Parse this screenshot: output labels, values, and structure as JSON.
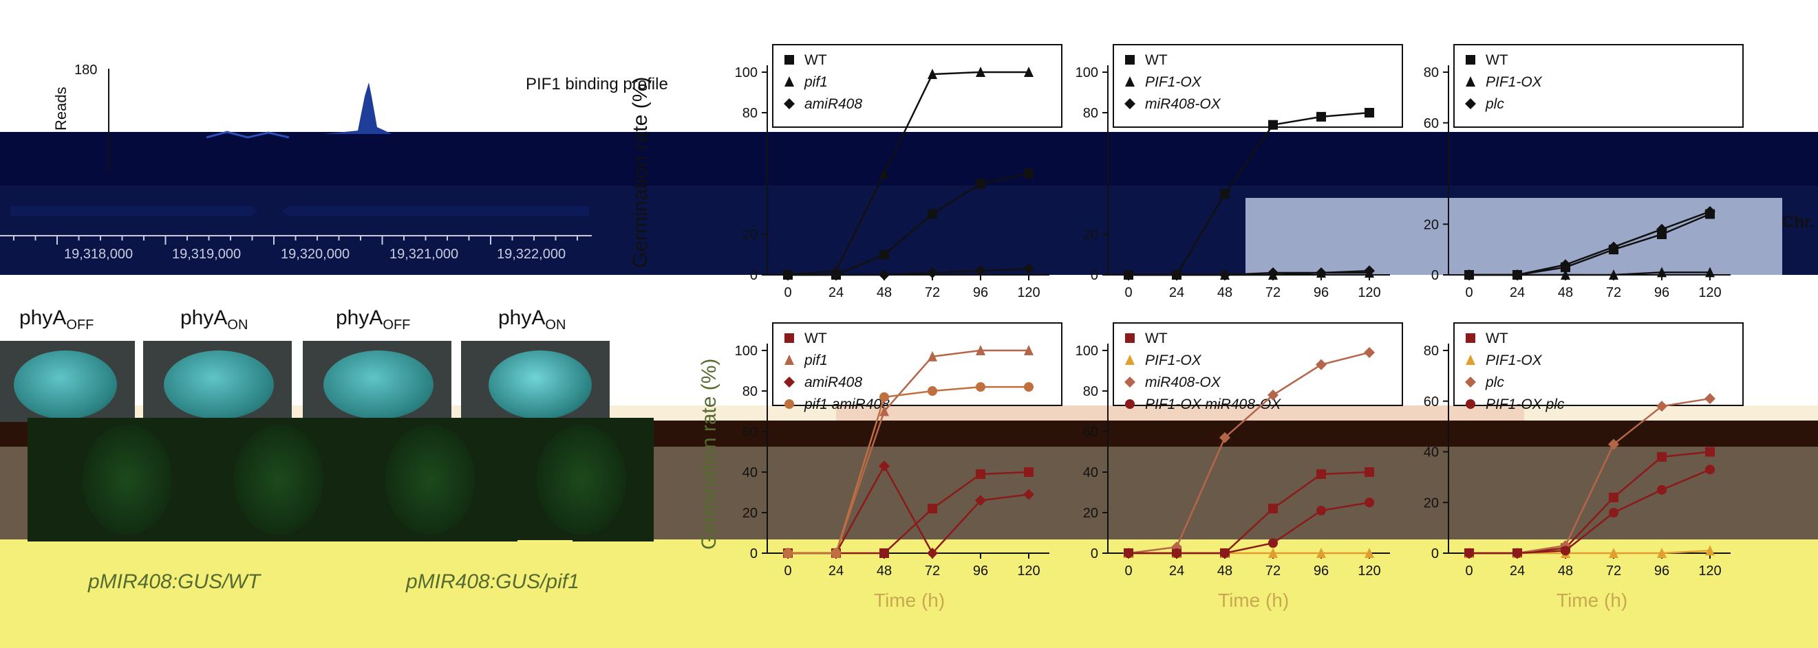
{
  "binding_profile": {
    "reads_label": "Reads",
    "reads_max": "180",
    "title": "PIF1 binding profile",
    "coords": [
      "19,318,000",
      "19,319,000",
      "19,320,000",
      "19,321,000",
      "19,322,000"
    ],
    "chr_label": "Chr."
  },
  "photos": {
    "titles": [
      {
        "main": "phyA",
        "sub": "OFF"
      },
      {
        "main": "phyA",
        "sub": "ON"
      },
      {
        "main": "phyA",
        "sub": "OFF"
      },
      {
        "main": "phyA",
        "sub": "ON"
      }
    ],
    "captions": [
      "pMIR408:GUS/WT",
      "pMIR408:GUS/pif1"
    ]
  },
  "axis": {
    "ylabel_top": "Germination rate (%)",
    "ylabel_bottom": "Germination rate (%)",
    "xlabel": "Time (h)"
  },
  "chart_data": [
    {
      "type": "line",
      "xlabel": "",
      "ylabel": "Germination rate (%)",
      "x": [
        0,
        24,
        48,
        72,
        96,
        120
      ],
      "ylim": [
        0,
        100
      ],
      "yticks": [
        0,
        20,
        80,
        100
      ],
      "color": "#111111",
      "series": [
        {
          "name": "WT",
          "marker": "square",
          "values": [
            0,
            0,
            10,
            30,
            45,
            50
          ]
        },
        {
          "name": "pif1",
          "marker": "triangle",
          "values": [
            0,
            2,
            50,
            99,
            100,
            100
          ]
        },
        {
          "name": "amiR408",
          "marker": "diamond",
          "values": [
            0,
            0,
            0,
            1,
            2,
            3
          ]
        }
      ]
    },
    {
      "type": "line",
      "ylabel": "",
      "x": [
        0,
        24,
        48,
        72,
        96,
        120
      ],
      "ylim": [
        0,
        100
      ],
      "yticks": [
        0,
        20,
        80,
        100
      ],
      "color": "#111111",
      "series": [
        {
          "name": "WT",
          "marker": "square",
          "values": [
            0,
            0,
            40,
            74,
            78,
            80
          ]
        },
        {
          "name": "PIF1-OX",
          "marker": "triangle",
          "values": [
            0,
            0,
            0,
            0,
            1,
            1
          ]
        },
        {
          "name": "miR408-OX",
          "marker": "diamond",
          "values": [
            0,
            0,
            0,
            1,
            1,
            2
          ]
        }
      ]
    },
    {
      "type": "line",
      "ylabel": "",
      "x": [
        0,
        24,
        48,
        72,
        96,
        120
      ],
      "ylim": [
        0,
        80
      ],
      "yticks": [
        0,
        20,
        60,
        80
      ],
      "color": "#111111",
      "series": [
        {
          "name": "WT",
          "marker": "square",
          "values": [
            0,
            0,
            3,
            10,
            16,
            24
          ]
        },
        {
          "name": "PIF1-OX",
          "marker": "triangle",
          "values": [
            0,
            0,
            0,
            0,
            1,
            1
          ]
        },
        {
          "name": "plc",
          "marker": "diamond",
          "values": [
            0,
            0,
            4,
            11,
            18,
            25
          ]
        }
      ]
    },
    {
      "type": "line",
      "xlabel": "Time (h)",
      "ylabel": "Germination rate (%)",
      "x": [
        0,
        24,
        48,
        72,
        96,
        120
      ],
      "ylim": [
        0,
        100
      ],
      "yticks": [
        0,
        20,
        40,
        60,
        80,
        100
      ],
      "series": [
        {
          "name": "WT",
          "marker": "square",
          "color": "#8b1a1a",
          "values": [
            0,
            0,
            0,
            22,
            39,
            40
          ]
        },
        {
          "name": "pif1",
          "marker": "triangle",
          "color": "#b5654a",
          "values": [
            0,
            0,
            70,
            97,
            100,
            100
          ]
        },
        {
          "name": "amiR408",
          "marker": "diamond",
          "color": "#8b1a1a",
          "values": [
            0,
            0,
            43,
            0,
            26,
            29
          ]
        },
        {
          "name": "pif1 amiR408",
          "marker": "circle",
          "color": "#c0703e",
          "values": [
            0,
            0,
            77,
            80,
            82,
            82
          ]
        }
      ]
    },
    {
      "type": "line",
      "xlabel": "Time (h)",
      "ylabel": "",
      "x": [
        0,
        24,
        48,
        72,
        96,
        120
      ],
      "ylim": [
        0,
        100
      ],
      "yticks": [
        0,
        20,
        40,
        60,
        80,
        100
      ],
      "series": [
        {
          "name": "WT",
          "marker": "square",
          "color": "#8b1a1a",
          "values": [
            0,
            0,
            0,
            22,
            39,
            40
          ]
        },
        {
          "name": "PIF1-OX",
          "marker": "triangle",
          "color": "#e0a030",
          "values": [
            0,
            0,
            0,
            0,
            0,
            0
          ]
        },
        {
          "name": "miR408-OX",
          "marker": "diamond",
          "color": "#b5654a",
          "values": [
            0,
            3,
            57,
            78,
            93,
            99
          ]
        },
        {
          "name": "PIF1-OX miR408-OX",
          "marker": "circle",
          "color": "#8b1a1a",
          "values": [
            0,
            0,
            0,
            5,
            21,
            25
          ]
        }
      ]
    },
    {
      "type": "line",
      "xlabel": "Time (h)",
      "ylabel": "",
      "x": [
        0,
        24,
        48,
        72,
        96,
        120
      ],
      "ylim": [
        0,
        80
      ],
      "yticks": [
        0,
        20,
        40,
        60,
        80
      ],
      "series": [
        {
          "name": "WT",
          "marker": "square",
          "color": "#8b1a1a",
          "values": [
            0,
            0,
            2,
            22,
            38,
            40
          ]
        },
        {
          "name": "PIF1-OX",
          "marker": "triangle",
          "color": "#e0a030",
          "values": [
            0,
            0,
            0,
            0,
            0,
            1
          ]
        },
        {
          "name": "plc",
          "marker": "diamond",
          "color": "#b5654a",
          "values": [
            0,
            0,
            3,
            43,
            58,
            61
          ]
        },
        {
          "name": "PIF1-OX plc",
          "marker": "circle",
          "color": "#8b1a1a",
          "values": [
            0,
            0,
            1,
            16,
            25,
            33
          ]
        }
      ]
    }
  ]
}
